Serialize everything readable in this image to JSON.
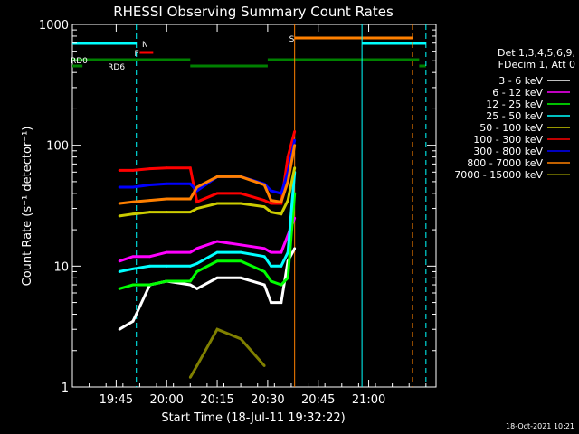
{
  "chart_data": {
    "type": "line",
    "title": "RHESSI Observing Summary Count Rates",
    "xlabel": "Start Time (18-Jul-11 19:32:22)",
    "ylabel": "Count Rate (s⁻¹ detector⁻¹)",
    "y_scale": "log",
    "ylim": [
      1,
      1000
    ],
    "xlim": [
      "19:32",
      "21:20"
    ],
    "x_ticks": [
      "19:45",
      "20:00",
      "20:15",
      "20:30",
      "20:45",
      "21:00"
    ],
    "y_ticks": [
      "1",
      "10",
      "100",
      "1000"
    ],
    "grid": false,
    "legend_placement": "right",
    "legend_header": [
      "Det 1,3,4,5,6,9,",
      "FDecim 1, Att 0"
    ],
    "footer": "18-Oct-2021 10:21",
    "state_bars": [
      {
        "label": "N",
        "color": "#00ffff",
        "segments": [
          [
            "19:32",
            "19:51"
          ],
          [
            "20:58",
            "21:17"
          ]
        ]
      },
      {
        "label": "F",
        "color": "#ff0000",
        "segments": [
          [
            "19:52",
            "19:56"
          ]
        ]
      },
      {
        "label": "S",
        "color": "#ff8000",
        "segments": [
          [
            "20:38",
            "21:13"
          ]
        ]
      },
      {
        "label": "RD0",
        "color": "#008000",
        "segments": [
          [
            "19:32",
            "20:07"
          ],
          [
            "20:30",
            "21:15"
          ]
        ]
      },
      {
        "label": "RD6",
        "color": "#008000",
        "segments": [
          [
            "19:32",
            "19:35"
          ],
          [
            "20:07",
            "20:30"
          ],
          [
            "21:15",
            "21:17"
          ]
        ]
      }
    ],
    "vlines": [
      {
        "time": "19:51",
        "color": "#00ffff",
        "style": "dashed"
      },
      {
        "time": "20:38",
        "color": "#ff8000",
        "style": "solid"
      },
      {
        "time": "20:58",
        "color": "#00ffff",
        "style": "solid"
      },
      {
        "time": "21:13",
        "color": "#ff8000",
        "style": "dashed"
      },
      {
        "time": "21:17",
        "color": "#00ffff",
        "style": "dashed"
      }
    ],
    "x": [
      "19:46",
      "19:50",
      "19:55",
      "20:00",
      "20:07",
      "20:09",
      "20:15",
      "20:22",
      "20:29",
      "20:31",
      "20:34",
      "20:36",
      "20:38"
    ],
    "series": [
      {
        "name": "3 - 6 keV",
        "color": "#ffffff",
        "values": [
          3,
          3.5,
          7,
          7.5,
          7,
          6.5,
          8,
          8,
          7,
          5,
          5,
          11,
          14
        ]
      },
      {
        "name": "6 - 12 keV",
        "color": "#ff00ff",
        "values": [
          11,
          12,
          12,
          13,
          13,
          14,
          16,
          15,
          14,
          13,
          13,
          18,
          25
        ]
      },
      {
        "name": "12 - 25 keV",
        "color": "#00ff00",
        "values": [
          6.5,
          7,
          7,
          7.5,
          7.5,
          9,
          11,
          11,
          9,
          7.5,
          7,
          8,
          40
        ]
      },
      {
        "name": "25 - 50 keV",
        "color": "#00ffff",
        "values": [
          9,
          9.5,
          10,
          10,
          10,
          10.5,
          13,
          13,
          12,
          10,
          10,
          13,
          60
        ]
      },
      {
        "name": "50 - 100 keV",
        "color": "#cccc00",
        "values": [
          26,
          27,
          28,
          28,
          28,
          30,
          33,
          33,
          31,
          28,
          27,
          35,
          65
        ]
      },
      {
        "name": "100 - 300 keV",
        "color": "#ff0000",
        "values": [
          62,
          62,
          64,
          65,
          65,
          34,
          40,
          40,
          35,
          33,
          33,
          80,
          130
        ]
      },
      {
        "name": "300 - 800 keV",
        "color": "#0000ff",
        "values": [
          45,
          45,
          47,
          48,
          48,
          42,
          55,
          55,
          48,
          42,
          40,
          60,
          110
        ]
      },
      {
        "name": "800 - 7000 keV",
        "color": "#ff8000",
        "values": [
          33,
          34,
          35,
          36,
          36,
          45,
          55,
          55,
          47,
          35,
          34,
          50,
          100
        ]
      },
      {
        "name": "7000 - 15000 keV",
        "color": "#808000",
        "values": [
          null,
          null,
          null,
          null,
          1.2,
          1.5,
          3,
          2.5,
          1.5,
          null,
          null,
          null,
          null
        ]
      }
    ]
  }
}
